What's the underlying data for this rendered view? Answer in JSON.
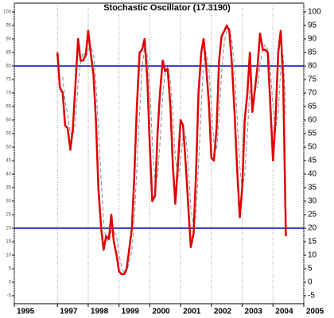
{
  "chart_data": {
    "type": "line",
    "title": "Stochastic Oscillator (17.3190)",
    "x": [
      1997.0,
      1997.08,
      1997.17,
      1997.25,
      1997.33,
      1997.42,
      1997.5,
      1997.58,
      1997.67,
      1997.75,
      1997.83,
      1997.92,
      1998.0,
      1998.08,
      1998.17,
      1998.25,
      1998.33,
      1998.42,
      1998.5,
      1998.58,
      1998.67,
      1998.75,
      1998.83,
      1998.92,
      1999.0,
      1999.08,
      1999.17,
      1999.25,
      1999.33,
      1999.42,
      1999.5,
      1999.58,
      1999.67,
      1999.75,
      1999.83,
      1999.92,
      2000.0,
      2000.08,
      2000.17,
      2000.25,
      2000.33,
      2000.42,
      2000.5,
      2000.58,
      2000.67,
      2000.75,
      2000.83,
      2000.92,
      2001.0,
      2001.08,
      2001.17,
      2001.25,
      2001.33,
      2001.42,
      2001.5,
      2001.58,
      2001.67,
      2001.75,
      2001.83,
      2001.92,
      2002.0,
      2002.08,
      2002.17,
      2002.25,
      2002.33,
      2002.42,
      2002.5,
      2002.58,
      2002.67,
      2002.75,
      2002.83,
      2002.92,
      2003.0,
      2003.08,
      2003.17,
      2003.25,
      2003.33,
      2003.42,
      2003.5,
      2003.58,
      2003.67,
      2003.75,
      2003.83,
      2003.92,
      2004.0,
      2004.08,
      2004.17,
      2004.25,
      2004.33,
      2004.42
    ],
    "series": [
      {
        "color": "#e00000",
        "dash": false,
        "values": [
          85,
          72,
          70,
          58,
          57,
          49,
          57,
          72,
          90,
          82,
          82,
          84,
          93,
          85,
          77,
          60,
          35,
          20,
          12,
          17,
          16,
          25,
          15,
          10,
          4,
          3,
          3,
          5,
          12,
          20,
          40,
          65,
          85,
          86,
          90,
          75,
          50,
          30,
          32,
          55,
          70,
          82,
          78,
          79,
          65,
          43,
          29,
          45,
          60,
          58,
          43,
          28,
          13,
          18,
          40,
          70,
          85,
          90,
          80,
          66,
          46,
          45,
          57,
          82,
          91,
          93,
          95,
          93,
          80,
          63,
          43,
          24,
          35,
          60,
          70,
          85,
          63,
          72,
          80,
          92,
          86,
          86,
          85,
          64,
          45,
          60,
          85,
          93,
          75,
          17
        ]
      },
      {
        "color": "#8a8a8a",
        "dash": true,
        "values": [
          null,
          null,
          76,
          67,
          62,
          55,
          54,
          59,
          73,
          81,
          85,
          83,
          86,
          87,
          85,
          74,
          57,
          38,
          22,
          16,
          15,
          19,
          19,
          17,
          10,
          6,
          3,
          4,
          7,
          12,
          24,
          42,
          63,
          79,
          87,
          84,
          72,
          52,
          37,
          39,
          52,
          69,
          77,
          80,
          74,
          62,
          46,
          39,
          45,
          54,
          54,
          43,
          28,
          20,
          24,
          43,
          65,
          82,
          85,
          79,
          64,
          52,
          49,
          61,
          77,
          89,
          93,
          94,
          89,
          79,
          62,
          43,
          34,
          40,
          55,
          72,
          73,
          73,
          72,
          81,
          86,
          88,
          86,
          78,
          65,
          56,
          63,
          79,
          84,
          62
        ]
      }
    ],
    "xlim": [
      1995.6,
      2005.0
    ],
    "xticks": [
      {
        "value": 1995.6,
        "label": "1995"
      },
      1997,
      1998,
      1999,
      2000,
      2001,
      2002,
      2003,
      2004,
      2005
    ],
    "ylim": [
      -5,
      100
    ],
    "yticks": [
      -5,
      0,
      5,
      10,
      15,
      20,
      25,
      30,
      35,
      40,
      45,
      50,
      55,
      60,
      65,
      70,
      75,
      80,
      85,
      90,
      95,
      100
    ],
    "hlines": [
      80,
      20
    ],
    "hline_color": "#0000cc",
    "grid": true
  }
}
